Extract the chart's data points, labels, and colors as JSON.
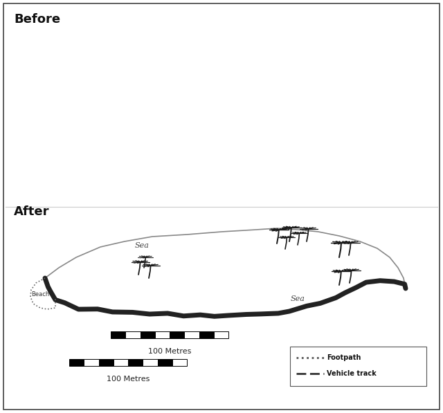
{
  "bg_color": "#ffffff",
  "title_before": "Before",
  "title_after": "After",
  "scale_label": "100 Metres",
  "legend_footpath": "Footpath",
  "legend_vehicle": "Vehicle track",
  "font_size_title": 13,
  "font_size_label": 8,
  "font_size_small": 7,
  "font_size_tiny": 6
}
